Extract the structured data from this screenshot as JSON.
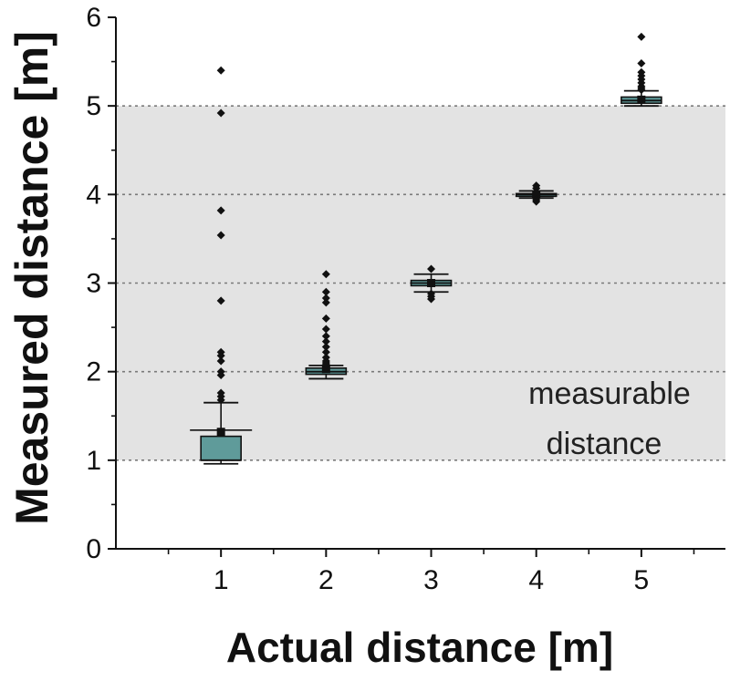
{
  "chart_data": {
    "type": "box",
    "xlabel": "Actual distance [m]",
    "ylabel": "Measured distance [m]",
    "xlim": [
      0,
      5.8
    ],
    "ylim": [
      0,
      6
    ],
    "x_ticks": [
      "1",
      "2",
      "3",
      "4",
      "5"
    ],
    "y_ticks": [
      "0",
      "1",
      "2",
      "3",
      "4",
      "5",
      "6"
    ],
    "grid": "dotted horizontal at 1, 2, 3, 4, 5",
    "shaded_band": {
      "from": 1,
      "to": 5,
      "color": "#e3e3e3",
      "label_line1": "measurable",
      "label_line2": "distance"
    },
    "box_color": "#5f9b9a",
    "boxes": [
      {
        "x": 1,
        "whisker_low": 0.96,
        "q1": 1.0,
        "median": 1.0,
        "q3": 1.27,
        "whisker_high": 1.65,
        "mean": 1.32,
        "cap_extra": 1.34,
        "outliers": [
          5.4,
          4.92,
          3.82,
          3.54,
          2.8,
          2.22,
          2.18,
          2.12,
          2.0,
          1.96,
          1.76,
          1.72,
          1.68
        ]
      },
      {
        "x": 2,
        "whisker_low": 1.92,
        "q1": 1.97,
        "median": 2.0,
        "q3": 2.04,
        "whisker_high": 2.07,
        "mean": 2.03,
        "outliers": [
          3.1,
          2.9,
          2.83,
          2.78,
          2.6,
          2.48,
          2.4,
          2.34,
          2.28,
          2.22,
          2.16,
          2.12,
          2.1,
          2.08
        ]
      },
      {
        "x": 3,
        "whisker_low": 2.9,
        "q1": 2.97,
        "median": 3.0,
        "q3": 3.03,
        "whisker_high": 3.1,
        "mean": 3.0,
        "outliers": [
          3.16,
          2.88,
          2.85,
          2.82
        ]
      },
      {
        "x": 4,
        "whisker_low": 3.96,
        "q1": 3.99,
        "median": 4.0,
        "q3": 4.01,
        "whisker_high": 4.04,
        "mean": 4.0,
        "outliers": [
          4.1,
          4.07,
          3.94,
          3.92
        ]
      },
      {
        "x": 5,
        "whisker_low": 5.0,
        "q1": 5.03,
        "median": 5.06,
        "q3": 5.1,
        "whisker_high": 5.17,
        "mean": 5.07,
        "outliers": [
          5.78,
          5.48,
          5.38,
          5.34,
          5.3,
          5.26,
          5.22,
          5.2,
          5.18
        ]
      }
    ]
  }
}
